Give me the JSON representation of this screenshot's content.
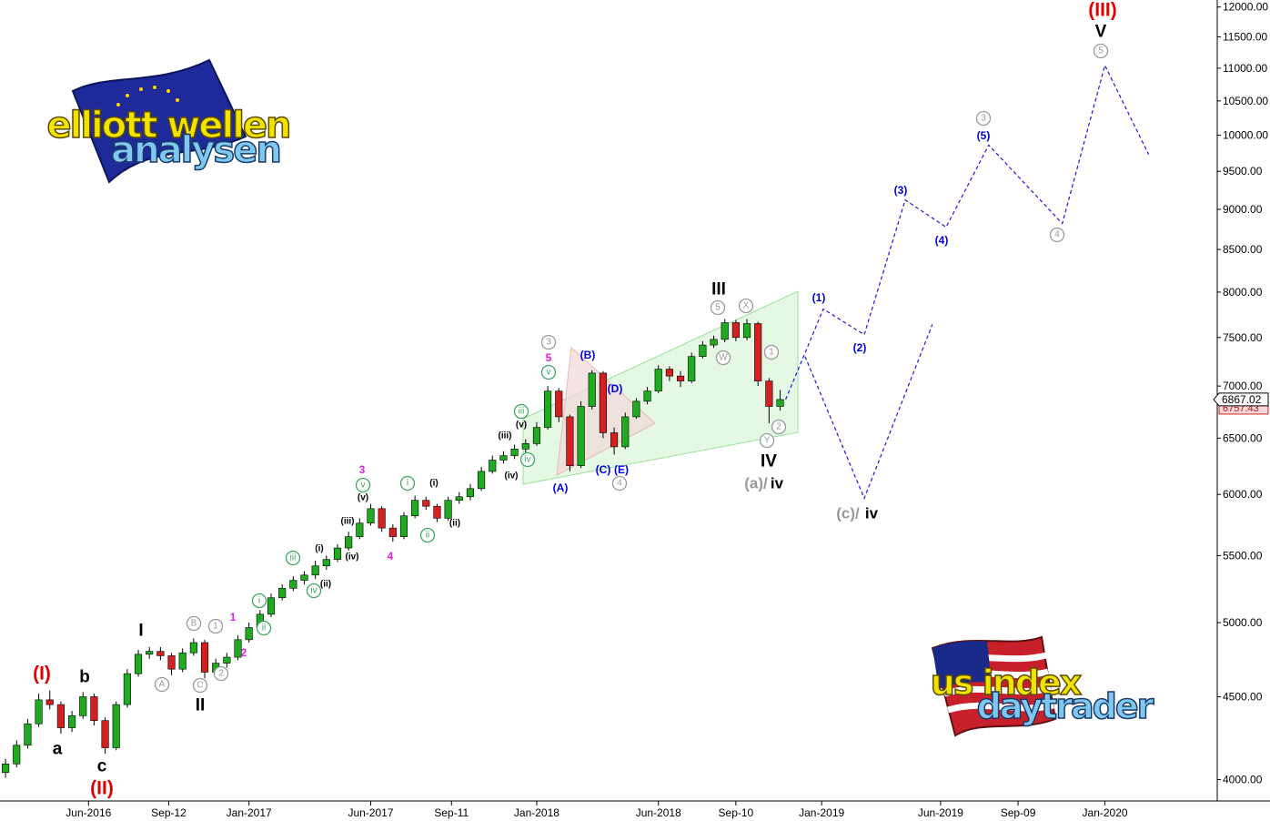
{
  "chart_data": {
    "type": "candlestick",
    "log_scale": true,
    "up_color": "#1faa1f",
    "down_color": "#d42020",
    "ylim": [
      3880,
      12120
    ],
    "yticks": [
      {
        "value": 12000,
        "label": "12000.00"
      },
      {
        "value": 11500,
        "label": "11500.00"
      },
      {
        "value": 11000,
        "label": "11000.00"
      },
      {
        "value": 10500,
        "label": "10500.00"
      },
      {
        "value": 10000,
        "label": "10000.00"
      },
      {
        "value": 9500,
        "label": "9500.00"
      },
      {
        "value": 9000,
        "label": "9000.00"
      },
      {
        "value": 8500,
        "label": "8500.00"
      },
      {
        "value": 8000,
        "label": "8000.00"
      },
      {
        "value": 7500,
        "label": "7500.00"
      },
      {
        "value": 7000,
        "label": "7000.00"
      },
      {
        "value": 6500,
        "label": "6500.00"
      },
      {
        "value": 6000,
        "label": "6000.00"
      },
      {
        "value": 5500,
        "label": "5500.00"
      },
      {
        "value": 5000,
        "label": "5000.00"
      },
      {
        "value": 4500,
        "label": "4500.00"
      },
      {
        "value": 4000,
        "label": "4000.00"
      }
    ],
    "xlim": [
      -1,
      219
    ],
    "xticks": [
      {
        "value": 15,
        "label": "Jun-2016"
      },
      {
        "value": 29.5,
        "label": "Sep-12"
      },
      {
        "value": 44,
        "label": "Jan-2017"
      },
      {
        "value": 66,
        "label": "Jun-2017"
      },
      {
        "value": 80.6,
        "label": "Sep-11"
      },
      {
        "value": 96,
        "label": "Jan-2018"
      },
      {
        "value": 118,
        "label": "Jun-2018"
      },
      {
        "value": 132,
        "label": "Sep-10"
      },
      {
        "value": 147.5,
        "label": "Jan-2019"
      },
      {
        "value": 169,
        "label": "Jun-2019"
      },
      {
        "value": 183,
        "label": "Sep-09"
      },
      {
        "value": 198.7,
        "label": "Jan-2020"
      }
    ],
    "x": [
      0,
      2,
      4,
      6,
      8,
      10,
      12,
      14,
      16,
      18,
      20,
      22,
      24,
      26,
      28,
      30,
      32,
      34,
      36,
      38,
      40,
      42,
      44,
      46,
      48,
      50,
      52,
      54,
      56,
      58,
      60,
      62,
      64,
      66,
      68,
      70,
      72,
      74,
      76,
      78,
      80,
      82,
      84,
      86,
      88,
      90,
      92,
      94,
      96,
      98,
      100,
      102,
      104,
      106,
      108,
      110,
      112,
      114,
      116,
      118,
      120,
      122,
      124,
      126,
      128,
      130,
      132,
      134,
      136,
      138,
      140
    ],
    "open": [
      4040,
      4090,
      4200,
      4330,
      4480,
      4450,
      4306,
      4380,
      4500,
      4350,
      4185,
      4450,
      4650,
      4780,
      4800,
      4770,
      4680,
      4790,
      4860,
      4660,
      4720,
      4760,
      4880,
      4965,
      5060,
      5180,
      5250,
      5310,
      5350,
      5420,
      5470,
      5560,
      5650,
      5760,
      5880,
      5720,
      5650,
      5820,
      5950,
      5900,
      5800,
      5950,
      5980,
      6050,
      6200,
      6300,
      6340,
      6400,
      6450,
      6600,
      6950,
      6700,
      6250,
      6800,
      7130,
      6550,
      6420,
      6700,
      6850,
      6950,
      7170,
      7100,
      7050,
      7300,
      7420,
      7480,
      7660,
      7500,
      7650,
      7050,
      6800
    ],
    "high": [
      4120,
      4230,
      4360,
      4520,
      4540,
      4470,
      4410,
      4530,
      4520,
      4370,
      4470,
      4680,
      4810,
      4830,
      4830,
      4790,
      4820,
      4890,
      4880,
      4750,
      4790,
      4910,
      5000,
      5090,
      5210,
      5280,
      5340,
      5380,
      5460,
      5500,
      5590,
      5690,
      5800,
      5920,
      5900,
      5750,
      5850,
      5990,
      5980,
      5920,
      5980,
      6020,
      6090,
      6240,
      6340,
      6380,
      6440,
      6490,
      6650,
      7000,
      6980,
      6720,
      6850,
      7160,
      7150,
      6600,
      6740,
      6880,
      6990,
      7210,
      7200,
      7150,
      7340,
      7460,
      7520,
      7700,
      7690,
      7700,
      7670,
      7080,
      6960
    ],
    "low": [
      4010,
      4070,
      4180,
      4310,
      4420,
      4270,
      4280,
      4360,
      4320,
      4150,
      4170,
      4430,
      4630,
      4750,
      4740,
      4640,
      4660,
      4770,
      4620,
      4630,
      4690,
      4740,
      4860,
      4940,
      5040,
      5160,
      5230,
      5280,
      5320,
      5390,
      5450,
      5540,
      5630,
      5740,
      5690,
      5610,
      5630,
      5800,
      5870,
      5770,
      5780,
      5920,
      5950,
      6030,
      6180,
      6270,
      6310,
      6370,
      6430,
      6580,
      6650,
      6200,
      6230,
      6770,
      6500,
      6350,
      6400,
      6680,
      6820,
      6930,
      7050,
      6990,
      7030,
      7280,
      7390,
      7450,
      7460,
      7470,
      7000,
      6640,
      6760
    ],
    "close": [
      4090,
      4200,
      4330,
      4480,
      4450,
      4306,
      4380,
      4500,
      4350,
      4185,
      4450,
      4650,
      4780,
      4800,
      4770,
      4680,
      4790,
      4860,
      4660,
      4720,
      4760,
      4880,
      4965,
      5060,
      5180,
      5250,
      5310,
      5350,
      5420,
      5470,
      5560,
      5650,
      5760,
      5880,
      5720,
      5650,
      5820,
      5950,
      5900,
      5800,
      5950,
      5980,
      6050,
      6200,
      6300,
      6340,
      6400,
      6450,
      6600,
      6950,
      6700,
      6250,
      6800,
      7130,
      6550,
      6420,
      6700,
      6850,
      6950,
      7170,
      7100,
      7050,
      7300,
      7420,
      7480,
      7660,
      7500,
      7650,
      7050,
      6800,
      6867
    ],
    "projections": [
      {
        "color": "#1a1ad0",
        "x": [
          141,
          147.8,
          155.2,
          162.6,
          170,
          177.7,
          191,
          198.7,
          206.6
        ],
        "values": [
          6867,
          7810,
          7530,
          9120,
          8775,
          9860,
          8820,
          11045,
          9730
        ]
      },
      {
        "color": "#1a1ad0",
        "x": [
          144.5,
          155.2,
          167.5
        ],
        "values": [
          7300,
          5967,
          7640
        ]
      }
    ],
    "last_price_label": "6867.02",
    "prev_price_label": "6757.43",
    "annotations": [
      {
        "text": "(I)",
        "color": "#e00000",
        "style": "major"
      },
      {
        "text": "(II)",
        "color": "#e00000",
        "style": "major"
      },
      {
        "text": "(III)",
        "color": "#e00000",
        "style": "major"
      },
      {
        "text": "a",
        "color": "#000000",
        "style": "wave"
      },
      {
        "text": "b",
        "color": "#000000",
        "style": "wave"
      },
      {
        "text": "c",
        "color": "#000000",
        "style": "wave"
      },
      {
        "text": "I",
        "color": "#000000",
        "style": "wave"
      },
      {
        "text": "II",
        "color": "#000000",
        "style": "wave"
      },
      {
        "text": "III",
        "color": "#000000",
        "style": "wave"
      },
      {
        "text": "IV",
        "color": "#000000",
        "style": "wave"
      },
      {
        "text": "V",
        "color": "#000000",
        "style": "wave"
      },
      {
        "text": "A",
        "color": "#999999",
        "style": "circled"
      },
      {
        "text": "B",
        "color": "#999999",
        "style": "circled"
      },
      {
        "text": "C",
        "color": "#999999",
        "style": "circled"
      },
      {
        "text": "1",
        "color": "#999999",
        "style": "circled"
      },
      {
        "text": "2",
        "color": "#999999",
        "style": "circled"
      },
      {
        "text": "3",
        "color": "#999999",
        "style": "circled"
      },
      {
        "text": "4",
        "color": "#999999",
        "style": "circled"
      },
      {
        "text": "5",
        "color": "#999999",
        "style": "circled"
      },
      {
        "text": "W",
        "color": "#999999",
        "style": "circled"
      },
      {
        "text": "X",
        "color": "#999999",
        "style": "circled"
      },
      {
        "text": "1",
        "color": "#999999",
        "style": "circled"
      },
      {
        "text": "Y",
        "color": "#999999",
        "style": "circled"
      },
      {
        "text": "2",
        "color": "#999999",
        "style": "circled"
      },
      {
        "text": "3",
        "color": "#999999",
        "style": "circled"
      },
      {
        "text": "4",
        "color": "#999999",
        "style": "circled"
      },
      {
        "text": "5",
        "color": "#999999",
        "style": "circled"
      },
      {
        "text": "i",
        "color": "#3aa860",
        "style": "circled"
      },
      {
        "text": "ii",
        "color": "#3aa860",
        "style": "circled"
      },
      {
        "text": "iii",
        "color": "#3aa860",
        "style": "circled"
      },
      {
        "text": "iv",
        "color": "#3aa860",
        "style": "circled"
      },
      {
        "text": "v",
        "color": "#3aa860",
        "style": "circled"
      },
      {
        "text": "i",
        "color": "#3aa860",
        "style": "circled"
      },
      {
        "text": "ii",
        "color": "#3aa860",
        "style": "circled"
      },
      {
        "text": "iii",
        "color": "#3aa860",
        "style": "circled"
      },
      {
        "text": "iv",
        "color": "#3aa860",
        "style": "circled"
      },
      {
        "text": "v",
        "color": "#3aa860",
        "style": "circled"
      },
      {
        "text": "(i)",
        "color": "#000000",
        "style": "small"
      },
      {
        "text": "(ii)",
        "color": "#000000",
        "style": "small"
      },
      {
        "text": "(iii)",
        "color": "#000000",
        "style": "small"
      },
      {
        "text": "(iv)",
        "color": "#000000",
        "style": "small"
      },
      {
        "text": "(v)",
        "color": "#000000",
        "style": "small"
      },
      {
        "text": "(i)",
        "color": "#000000",
        "style": "small"
      },
      {
        "text": "(ii)",
        "color": "#000000",
        "style": "small"
      },
      {
        "text": "(iii)",
        "color": "#000000",
        "style": "small"
      },
      {
        "text": "(iv)",
        "color": "#000000",
        "style": "small"
      },
      {
        "text": "(v)",
        "color": "#000000",
        "style": "small"
      },
      {
        "text": "1",
        "color": "#e020e0",
        "style": "label"
      },
      {
        "text": "2",
        "color": "#e020e0",
        "style": "label"
      },
      {
        "text": "3",
        "color": "#e020e0",
        "style": "label"
      },
      {
        "text": "4",
        "color": "#e020e0",
        "style": "label"
      },
      {
        "text": "5",
        "color": "#e020e0",
        "style": "label"
      },
      {
        "text": "(A)",
        "color": "#0000dd",
        "style": "label"
      },
      {
        "text": "(B)",
        "color": "#0000dd",
        "style": "label"
      },
      {
        "text": "(C)",
        "color": "#0000dd",
        "style": "label"
      },
      {
        "text": "(E)",
        "color": "#0000dd",
        "style": "label"
      },
      {
        "text": "(D)",
        "color": "#0000dd",
        "style": "label"
      },
      {
        "text": "(1)",
        "color": "#0000dd",
        "style": "label"
      },
      {
        "text": "(2)",
        "color": "#0000dd",
        "style": "label"
      },
      {
        "text": "(3)",
        "color": "#0000dd",
        "style": "label"
      },
      {
        "text": "(4)",
        "color": "#0000dd",
        "style": "label"
      },
      {
        "text": "(5)",
        "color": "#0000dd",
        "style": "label"
      },
      {
        "text": "(a)/",
        "color": "#999999",
        "style": "sub"
      },
      {
        "text": "iv",
        "color": "#000000",
        "style": "sub"
      },
      {
        "text": "(c)/",
        "color": "#999999",
        "style": "sub"
      },
      {
        "text": "iv",
        "color": "#000000",
        "style": "sub"
      }
    ]
  },
  "logos": [
    {
      "line1": "elliott wellen",
      "line2": "analysen"
    },
    {
      "line1": "us index",
      "line2": "daytrader"
    }
  ]
}
